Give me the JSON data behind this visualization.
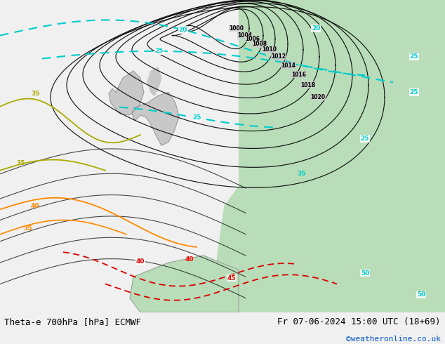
{
  "title_left": "Theta-e 700hPa [hPa] ECMWF",
  "title_right": "Fr 07-06-2024 15:00 UTC (18+69)",
  "watermark": "©weatheronline.co.uk",
  "watermark_color": "#0055cc",
  "bg_color": "#cccccc",
  "green_color": "#aaddaa",
  "label_fontsize": 9,
  "bottom_bar_color": "#f0f0f0",
  "map_bg": "#cccccc"
}
